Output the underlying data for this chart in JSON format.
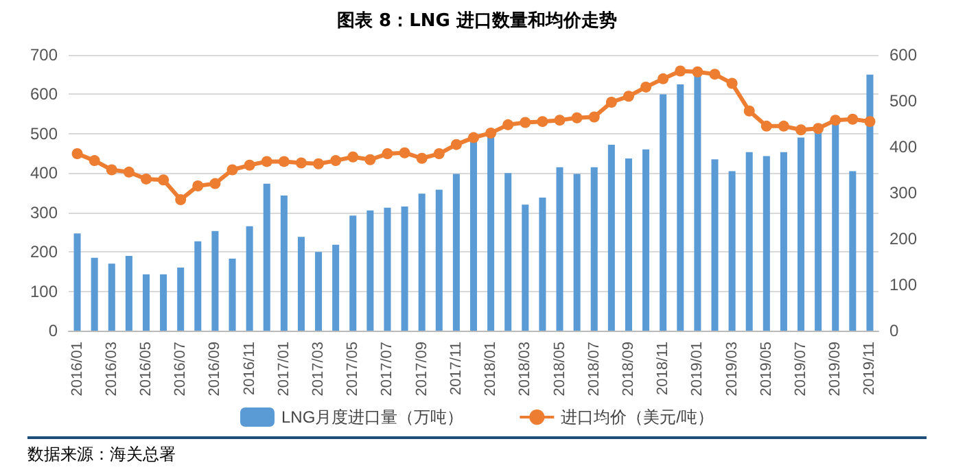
{
  "chart_data": {
    "type": "bar",
    "title": "图表 8：LNG 进口数量和均价走势",
    "categories": [
      "2016/01",
      null,
      "2016/03",
      null,
      "2016/05",
      null,
      "2016/07",
      null,
      "2016/09",
      null,
      "2016/11",
      null,
      "2017/01",
      null,
      "2017/03",
      null,
      "2017/05",
      null,
      "2017/07",
      null,
      "2017/09",
      null,
      "2017/11",
      null,
      "2018/01",
      null,
      "2018/03",
      null,
      "2018/05",
      null,
      "2018/07",
      null,
      "2018/09",
      null,
      "2018/11",
      null,
      "2019/01",
      null,
      "2019/03",
      null,
      "2019/05",
      null,
      "2019/07",
      null,
      "2019/09",
      null,
      "2019/11"
    ],
    "series": [
      {
        "name": "LNG月度进口量（万吨）",
        "color": "#5b9bd5",
        "values": [
          247,
          185,
          170,
          190,
          143,
          143,
          160,
          227,
          253,
          183,
          265,
          373,
          343,
          238,
          200,
          218,
          292,
          305,
          312,
          315,
          348,
          358,
          398,
          490,
          500,
          400,
          320,
          338,
          415,
          398,
          415,
          472,
          437,
          460,
          600,
          625,
          650,
          435,
          405,
          453,
          443,
          453,
          490,
          510,
          525,
          405,
          650
        ]
      },
      {
        "name": "进口均价（美元/吨）",
        "type": "line",
        "axis": "y2",
        "color": "#ed7d31",
        "values": [
          385,
          370,
          350,
          345,
          330,
          328,
          285,
          315,
          320,
          350,
          360,
          368,
          368,
          365,
          363,
          370,
          378,
          372,
          385,
          387,
          375,
          385,
          405,
          420,
          430,
          448,
          453,
          455,
          458,
          463,
          465,
          497,
          510,
          530,
          548,
          565,
          563,
          558,
          538,
          478,
          445,
          445,
          437,
          440,
          458,
          460,
          455
        ]
      }
    ],
    "ylim": [
      0,
      700
    ],
    "yticks": [
      0,
      100,
      200,
      300,
      400,
      500,
      600,
      700
    ],
    "y2lim": [
      0,
      600
    ],
    "y2ticks": [
      0,
      100,
      200,
      300,
      400,
      500,
      600
    ],
    "grid": "y",
    "legend": "bottom",
    "marker": "circle",
    "line_style": "solid",
    "annotations": [
      "数据来源：海关总署"
    ]
  }
}
